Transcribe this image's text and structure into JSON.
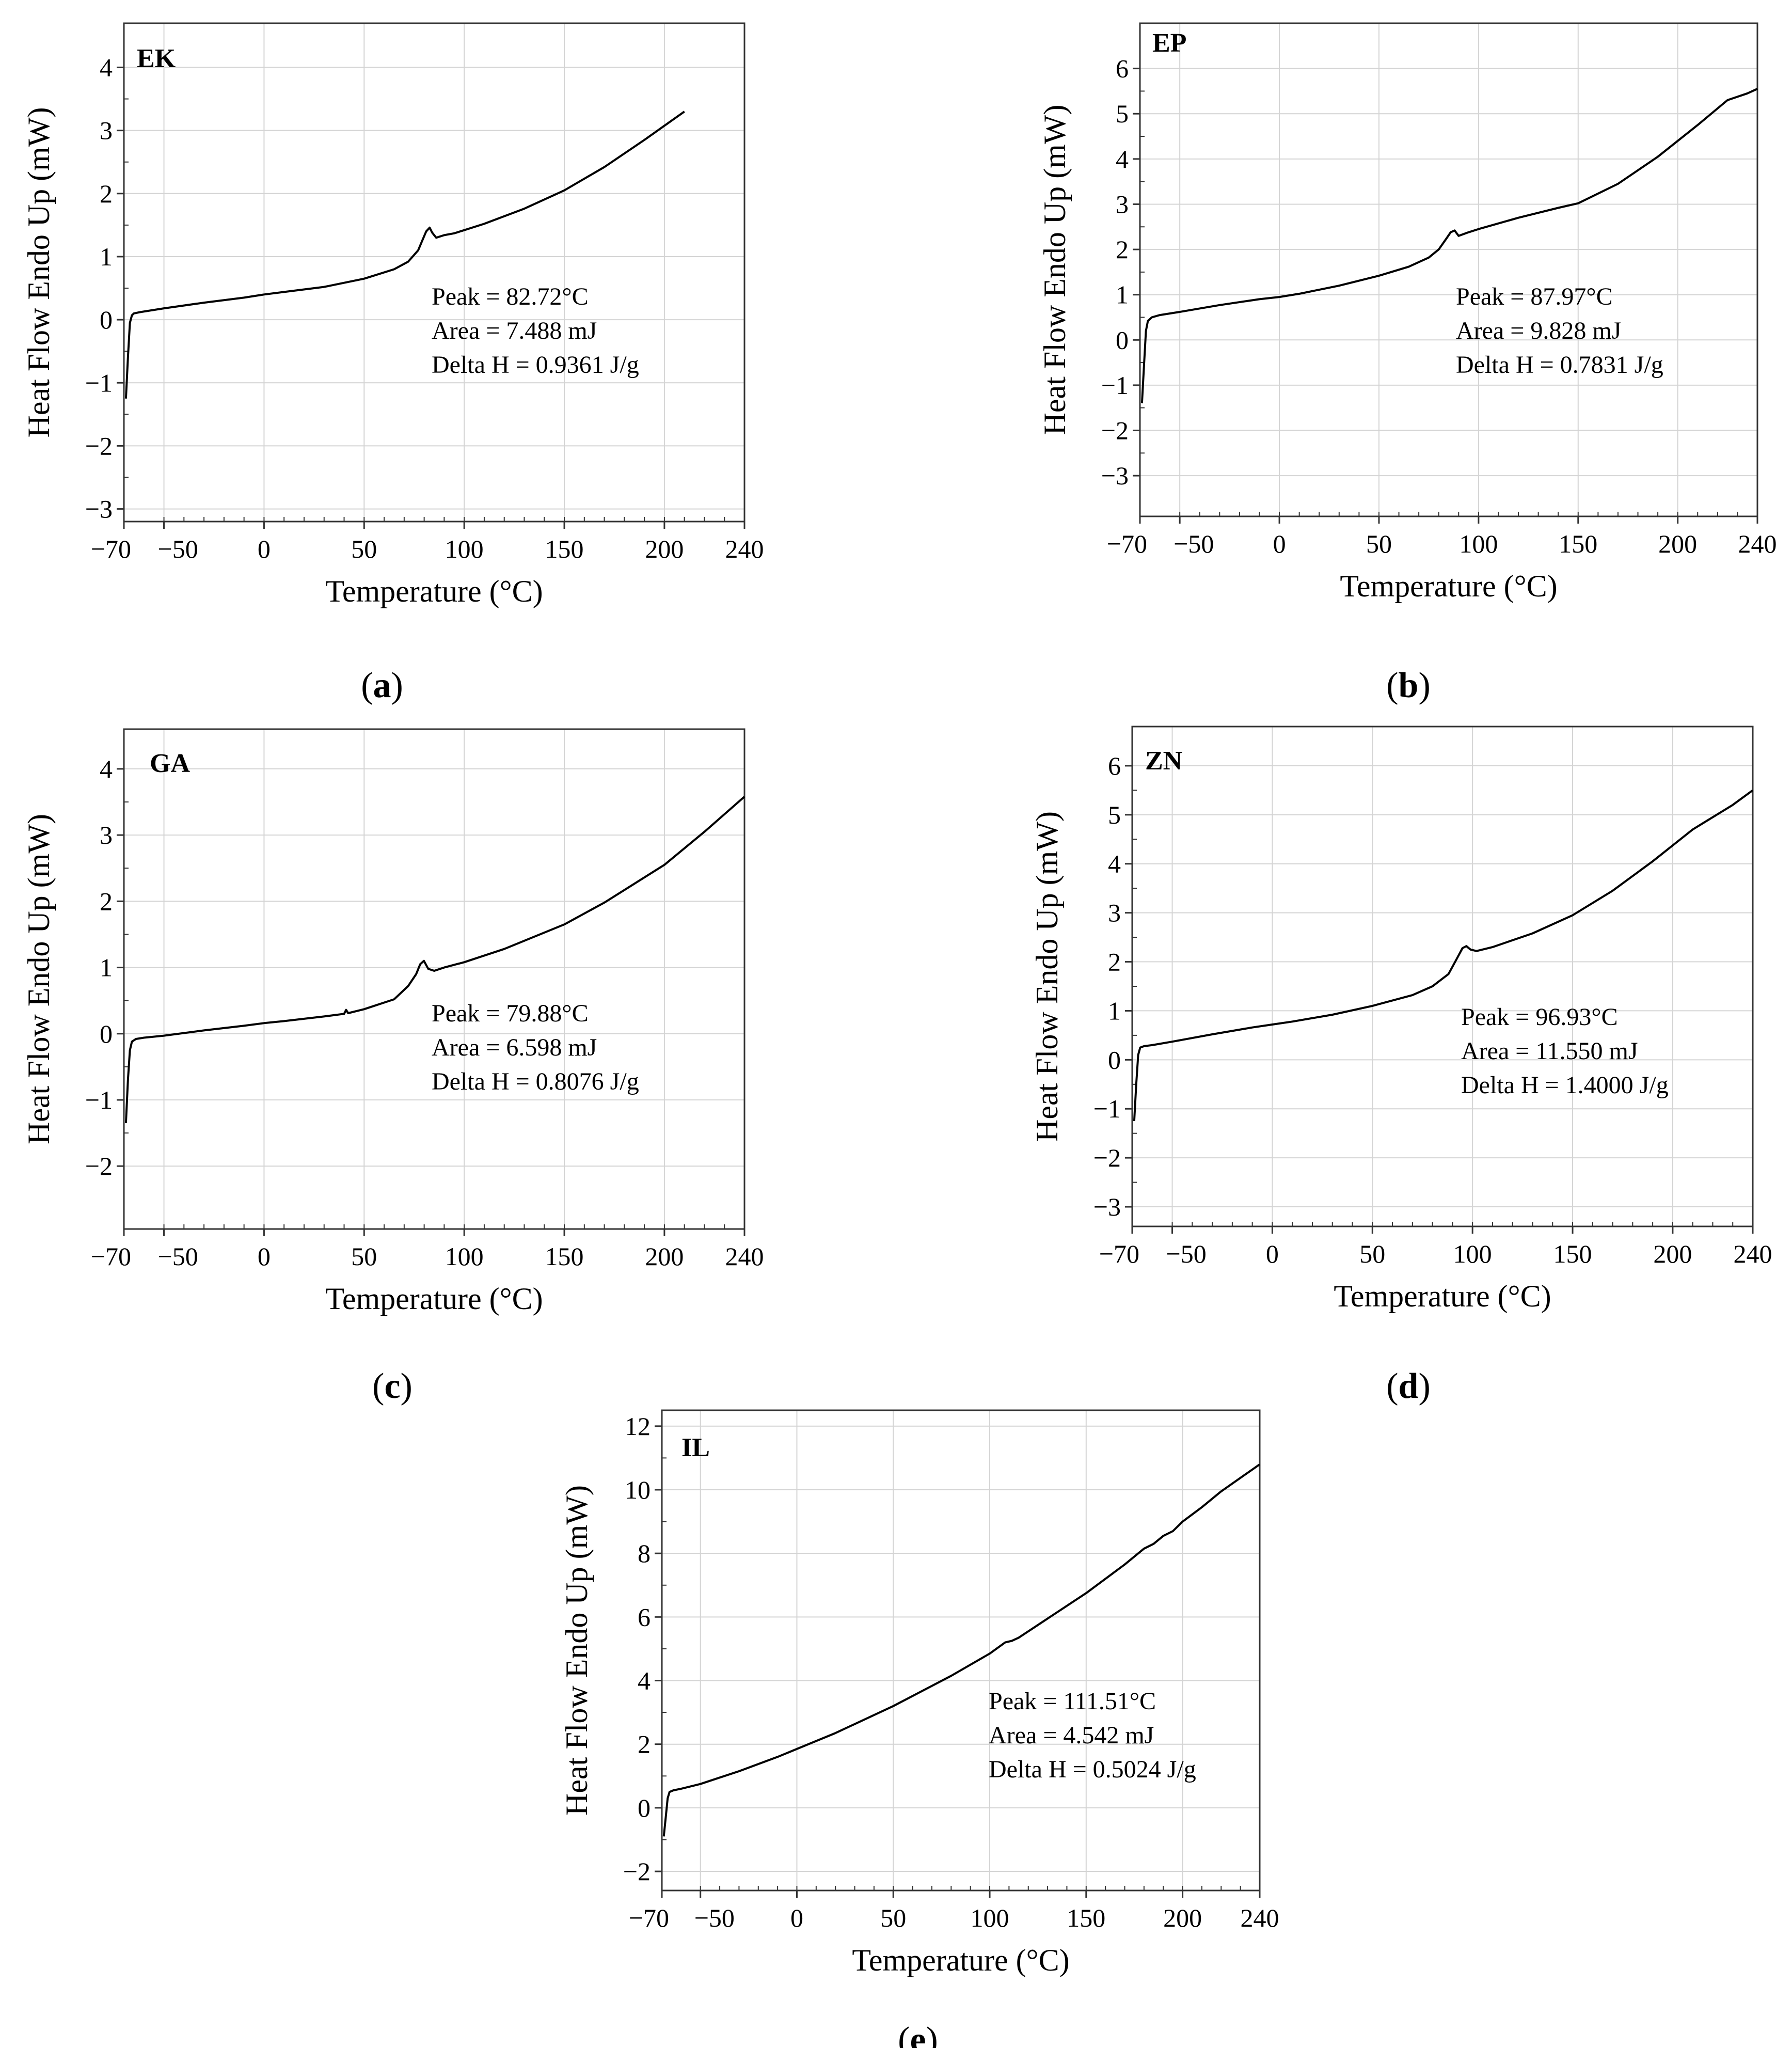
{
  "figure": {
    "captions": [
      {
        "open": "(",
        "letter": "a",
        "close": ")"
      },
      {
        "open": "(",
        "letter": "b",
        "close": ")"
      },
      {
        "open": "(",
        "letter": "c",
        "close": ")"
      },
      {
        "open": "(",
        "letter": "d",
        "close": ")"
      },
      {
        "open": "(",
        "letter": "e",
        "close": ")"
      }
    ],
    "colors": {
      "curve": "#000000",
      "grid": "#d4d4d4",
      "axis": "#333333"
    }
  },
  "chart_data": [
    {
      "type": "line",
      "tag": "EK",
      "xlabel": "Temperature (°C)",
      "ylabel": "Heat Flow Endo Up (mW)",
      "xlim": [
        -70,
        240
      ],
      "ylim": [
        -3.2,
        4.7
      ],
      "xticks": [
        -70,
        -50,
        0,
        50,
        100,
        150,
        200,
        240
      ],
      "yticks": [
        -3,
        -2,
        -1,
        0,
        1,
        2,
        3,
        4
      ],
      "xtick_labels": [
        "−70",
        "−50",
        "0",
        "50",
        "100",
        "150",
        "200",
        "240"
      ],
      "ytick_labels": [
        "−3",
        "−2",
        "−1",
        "0",
        "1",
        "2",
        "3",
        "4"
      ],
      "grid": true,
      "annotations": [
        "Peak = 82.72°C",
        "Area = 7.488 mJ",
        "Delta H = 0.9361 J/g"
      ],
      "series": [
        {
          "name": "EK",
          "x": [
            -69,
            -68,
            -67,
            -66,
            -65,
            -62,
            -50,
            -30,
            -10,
            0,
            10,
            30,
            50,
            65,
            72,
            77,
            79,
            81,
            82.72,
            84,
            86,
            90,
            95,
            100,
            110,
            130,
            150,
            170,
            190,
            210
          ],
          "y": [
            -1.25,
            -0.6,
            -0.05,
            0.07,
            0.1,
            0.12,
            0.18,
            0.27,
            0.35,
            0.4,
            0.44,
            0.52,
            0.65,
            0.8,
            0.92,
            1.1,
            1.25,
            1.4,
            1.46,
            1.38,
            1.3,
            1.34,
            1.37,
            1.42,
            1.52,
            1.76,
            2.05,
            2.42,
            2.85,
            3.3
          ]
        }
      ]
    },
    {
      "type": "line",
      "tag": "EP",
      "xlabel": "Temperature (°C)",
      "ylabel": "Heat Flow Endo Up (mW)",
      "xlim": [
        -70,
        240
      ],
      "ylim": [
        -3.9,
        7.0
      ],
      "xticks": [
        -70,
        -50,
        0,
        50,
        100,
        150,
        200,
        240
      ],
      "yticks": [
        -3,
        -2,
        -1,
        0,
        1,
        2,
        3,
        4,
        5,
        6
      ],
      "xtick_labels": [
        "−70",
        "−50",
        "0",
        "50",
        "100",
        "150",
        "200",
        "240"
      ],
      "ytick_labels": [
        "−3",
        "−2",
        "−1",
        "0",
        "1",
        "2",
        "3",
        "4",
        "5",
        "6"
      ],
      "grid": true,
      "annotations": [
        "Peak = 87.97°C",
        "Area = 9.828 mJ",
        "Delta H = 0.7831 J/g"
      ],
      "series": [
        {
          "name": "EP",
          "x": [
            -69,
            -68,
            -67,
            -66,
            -64,
            -60,
            -50,
            -30,
            -10,
            0,
            10,
            30,
            50,
            65,
            75,
            80,
            84,
            86,
            87.97,
            90,
            95,
            100,
            120,
            140,
            150,
            170,
            190,
            210,
            225,
            235,
            240
          ],
          "y": [
            -1.4,
            -0.6,
            0.2,
            0.42,
            0.5,
            0.55,
            0.62,
            0.77,
            0.9,
            0.95,
            1.02,
            1.2,
            1.42,
            1.62,
            1.82,
            2.0,
            2.25,
            2.38,
            2.42,
            2.3,
            2.38,
            2.45,
            2.7,
            2.92,
            3.02,
            3.45,
            4.05,
            4.75,
            5.3,
            5.45,
            5.55
          ]
        }
      ]
    },
    {
      "type": "line",
      "tag": "GA",
      "xlabel": "Temperature (°C)",
      "ylabel": "Heat Flow Endo Up (mW)",
      "xlim": [
        -70,
        240
      ],
      "ylim": [
        -2.95,
        4.6
      ],
      "xticks": [
        -70,
        -50,
        0,
        50,
        100,
        150,
        200,
        240
      ],
      "yticks": [
        -2,
        -1,
        0,
        1,
        2,
        3,
        4
      ],
      "xtick_labels": [
        "−70",
        "−50",
        "0",
        "50",
        "100",
        "150",
        "200",
        "240"
      ],
      "ytick_labels": [
        "−2",
        "−1",
        "0",
        "1",
        "2",
        "3",
        "4"
      ],
      "grid": true,
      "annotations": [
        "Peak = 79.88°C",
        "Area = 6.598 mJ",
        "Delta H = 0.8076 J/g"
      ],
      "series": [
        {
          "name": "GA",
          "x": [
            -69,
            -68,
            -67,
            -66,
            -64,
            -60,
            -50,
            -30,
            -10,
            0,
            10,
            30,
            40,
            41,
            42,
            50,
            65,
            72,
            76,
            78,
            79.88,
            82,
            85,
            90,
            100,
            120,
            150,
            170,
            200,
            220,
            240
          ],
          "y": [
            -1.35,
            -0.7,
            -0.25,
            -0.12,
            -0.08,
            -0.06,
            -0.03,
            0.05,
            0.12,
            0.16,
            0.19,
            0.26,
            0.3,
            0.36,
            0.31,
            0.37,
            0.52,
            0.72,
            0.9,
            1.05,
            1.1,
            0.98,
            0.95,
            1.0,
            1.08,
            1.28,
            1.65,
            1.98,
            2.55,
            3.05,
            3.58
          ]
        }
      ]
    },
    {
      "type": "line",
      "tag": "ZN",
      "xlabel": "Temperature (°C)",
      "ylabel": "Heat Flow Endo Up (mW)",
      "xlim": [
        -70,
        240
      ],
      "ylim": [
        -3.4,
        6.8
      ],
      "xticks": [
        -70,
        -50,
        0,
        50,
        100,
        150,
        200,
        240
      ],
      "yticks": [
        -3,
        -2,
        -1,
        0,
        1,
        2,
        3,
        4,
        5,
        6
      ],
      "xtick_labels": [
        "−70",
        "−50",
        "0",
        "50",
        "100",
        "150",
        "200",
        "240"
      ],
      "ytick_labels": [
        "−3",
        "−2",
        "−1",
        "0",
        "1",
        "2",
        "3",
        "4",
        "5",
        "6"
      ],
      "grid": true,
      "annotations": [
        "Peak = 96.93°C",
        "Area = 11.550 mJ",
        "Delta H = 1.4000 J/g"
      ],
      "series": [
        {
          "name": "ZN",
          "x": [
            -69,
            -68,
            -67,
            -66,
            -64,
            -60,
            -50,
            -30,
            -10,
            0,
            10,
            30,
            50,
            70,
            80,
            88,
            92,
            95,
            96.93,
            99,
            102,
            110,
            130,
            150,
            170,
            190,
            210,
            230,
            240
          ],
          "y": [
            -1.25,
            -0.5,
            0.1,
            0.25,
            0.28,
            0.3,
            0.37,
            0.52,
            0.66,
            0.72,
            0.78,
            0.92,
            1.1,
            1.32,
            1.5,
            1.75,
            2.05,
            2.28,
            2.32,
            2.25,
            2.22,
            2.3,
            2.58,
            2.95,
            3.45,
            4.05,
            4.7,
            5.2,
            5.5
          ]
        }
      ]
    },
    {
      "type": "line",
      "tag": "IL",
      "xlabel": "Temperature (°C)",
      "ylabel": "Heat Flow Endo Up (mW)",
      "xlim": [
        -70,
        240
      ],
      "ylim": [
        -2.6,
        12.5
      ],
      "xticks": [
        -70,
        -50,
        0,
        50,
        100,
        150,
        200,
        240
      ],
      "yticks": [
        -2,
        0,
        2,
        4,
        6,
        8,
        10,
        12
      ],
      "xtick_labels": [
        "−70",
        "−50",
        "0",
        "50",
        "100",
        "150",
        "200",
        "240"
      ],
      "ytick_labels": [
        "−2",
        "0",
        "2",
        "4",
        "6",
        "8",
        "10",
        "12"
      ],
      "grid": true,
      "annotations": [
        "Peak = 111.51°C",
        "Area = 4.542 mJ",
        "Delta H = 0.5024 J/g"
      ],
      "series": [
        {
          "name": "IL",
          "x": [
            -69,
            -68,
            -67,
            -66,
            -64,
            -60,
            -50,
            -30,
            -10,
            0,
            20,
            50,
            80,
            100,
            108,
            111.51,
            115,
            130,
            150,
            170,
            180,
            185,
            190,
            195,
            200,
            210,
            220,
            240
          ],
          "y": [
            -0.9,
            -0.3,
            0.3,
            0.5,
            0.55,
            0.6,
            0.75,
            1.15,
            1.6,
            1.85,
            2.35,
            3.2,
            4.15,
            4.85,
            5.2,
            5.25,
            5.35,
            5.95,
            6.75,
            7.65,
            8.15,
            8.3,
            8.55,
            8.7,
            9.0,
            9.45,
            9.95,
            10.8
          ]
        }
      ]
    }
  ]
}
